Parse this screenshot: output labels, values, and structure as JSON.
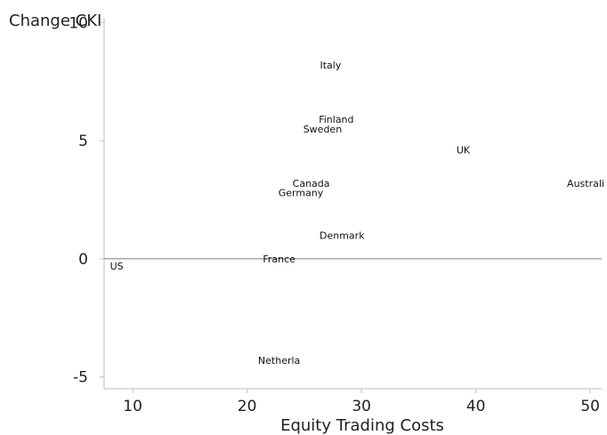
{
  "chart_data": {
    "type": "scatter",
    "title": "",
    "xlabel": "Equity Trading Costs",
    "ylabel": "Change CKI",
    "xlim": [
      7.5,
      51
    ],
    "ylim": [
      -5.5,
      10.2
    ],
    "xticks": [
      10,
      20,
      30,
      40,
      50
    ],
    "yticks": [
      10,
      5,
      0,
      -5
    ],
    "reference_line_y": 0,
    "grid": false,
    "points": [
      {
        "label": "Italy",
        "x": 27.3,
        "y": 8.2
      },
      {
        "label": "Finland",
        "x": 27.8,
        "y": 5.9
      },
      {
        "label": "Sweden",
        "x": 26.6,
        "y": 5.5
      },
      {
        "label": "UK",
        "x": 38.9,
        "y": 4.6
      },
      {
        "label": "Canada",
        "x": 25.6,
        "y": 3.2
      },
      {
        "label": "Australi",
        "x": 49.6,
        "y": 3.2
      },
      {
        "label": "Germany",
        "x": 24.7,
        "y": 2.8
      },
      {
        "label": "Denmark",
        "x": 28.3,
        "y": 1.0
      },
      {
        "label": "France",
        "x": 22.8,
        "y": 0.0
      },
      {
        "label": "US",
        "x": 8.6,
        "y": -0.3
      },
      {
        "label": "Netherla",
        "x": 22.8,
        "y": -4.3
      }
    ]
  }
}
